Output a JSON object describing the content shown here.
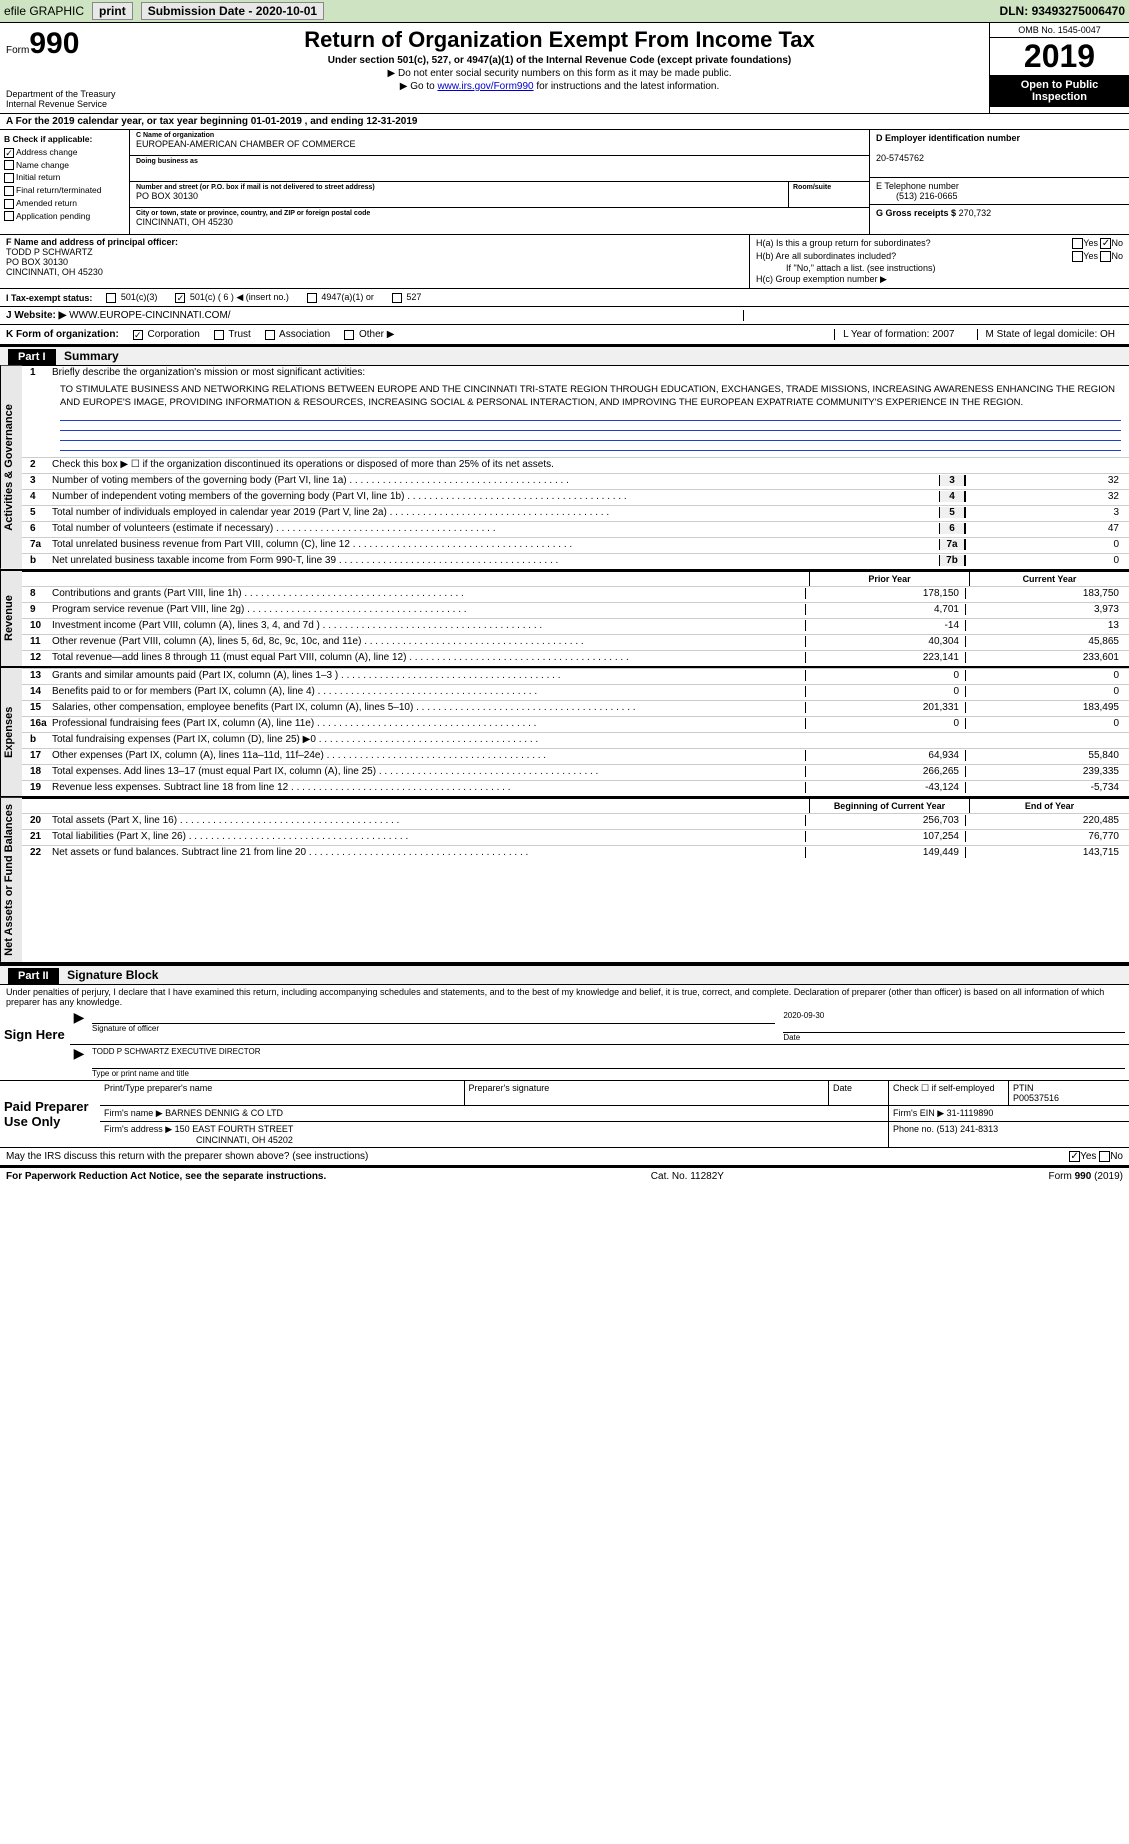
{
  "topbar": {
    "efile": "efile GRAPHIC",
    "print": "print",
    "submission": "Submission Date - 2020-10-01",
    "dln_label": "DLN:",
    "dln": "93493275006470"
  },
  "header": {
    "form_word": "Form",
    "form_num": "990",
    "dept": "Department of the Treasury\nInternal Revenue Service",
    "title": "Return of Organization Exempt From Income Tax",
    "subtitle": "Under section 501(c), 527, or 4947(a)(1) of the Internal Revenue Code (except private foundations)",
    "note1": "▶ Do not enter social security numbers on this form as it may be made public.",
    "note2_pre": "▶ Go to ",
    "note2_link": "www.irs.gov/Form990",
    "note2_post": " for instructions and the latest information.",
    "omb": "OMB No. 1545-0047",
    "year": "2019",
    "open": "Open to Public Inspection"
  },
  "rowA": "A For the 2019 calendar year, or tax year beginning 01-01-2019    , and ending 12-31-2019",
  "B": {
    "label": "B Check if applicable:",
    "items": [
      {
        "txt": "Address change",
        "chk": true
      },
      {
        "txt": "Name change",
        "chk": false
      },
      {
        "txt": "Initial return",
        "chk": false
      },
      {
        "txt": "Final return/terminated",
        "chk": false
      },
      {
        "txt": "Amended return",
        "chk": false
      },
      {
        "txt": "Application pending",
        "chk": false
      }
    ]
  },
  "C": {
    "name_lbl": "C Name of organization",
    "name": "EUROPEAN-AMERICAN CHAMBER OF COMMERCE",
    "dba_lbl": "Doing business as",
    "dba": "",
    "street_lbl": "Number and street (or P.O. box if mail is not delivered to street address)",
    "street": "PO BOX 30130",
    "room_lbl": "Room/suite",
    "city_lbl": "City or town, state or province, country, and ZIP or foreign postal code",
    "city": "CINCINNATI, OH  45230"
  },
  "DE": {
    "d_lbl": "D Employer identification number",
    "d_val": "20-5745762",
    "e_lbl": "E Telephone number",
    "e_val": "(513) 216-0665",
    "g_lbl": "G Gross receipts $",
    "g_val": "270,732"
  },
  "F": {
    "lbl": "F  Name and address of principal officer:",
    "name": "TODD P SCHWARTZ",
    "addr1": "PO BOX 30130",
    "addr2": "CINCINNATI, OH  45230"
  },
  "H": {
    "a": "H(a)  Is this a group return for subordinates?",
    "a_yes": false,
    "a_no": true,
    "b": "H(b)  Are all subordinates included?",
    "b_note": "If \"No,\" attach a list. (see instructions)",
    "c": "H(c)  Group exemption number ▶"
  },
  "I": {
    "lbl": "I   Tax-exempt status:",
    "opts": [
      {
        "txt": "501(c)(3)",
        "chk": false
      },
      {
        "txt": "501(c) ( 6 ) ◀ (insert no.)",
        "chk": true
      },
      {
        "txt": "4947(a)(1) or",
        "chk": false
      },
      {
        "txt": "527",
        "chk": false
      }
    ]
  },
  "J": {
    "lbl": "J   Website: ▶",
    "val": "WWW.EUROPE-CINCINNATI.COM/"
  },
  "K": {
    "lbl": "K Form of organization:",
    "opts": [
      {
        "txt": "Corporation",
        "chk": true
      },
      {
        "txt": "Trust",
        "chk": false
      },
      {
        "txt": "Association",
        "chk": false
      },
      {
        "txt": "Other ▶",
        "chk": false
      }
    ],
    "L": "L Year of formation: 2007",
    "M": "M State of legal domicile: OH"
  },
  "partI": {
    "hdr": "Part I",
    "title": "Summary"
  },
  "summary": {
    "l1": "Briefly describe the organization's mission or most significant activities:",
    "mission": "TO STIMULATE BUSINESS AND NETWORKING RELATIONS BETWEEN EUROPE AND THE CINCINNATI TRI-STATE REGION THROUGH EDUCATION, EXCHANGES, TRADE MISSIONS, INCREASING AWARENESS ENHANCING THE REGION AND EUROPE'S IMAGE, PROVIDING INFORMATION & RESOURCES, INCREASING SOCIAL & PERSONAL INTERACTION, AND IMPROVING THE EUROPEAN EXPATRIATE COMMUNITY'S EXPERIENCE IN THE REGION.",
    "l2": "Check this box ▶ ☐  if the organization discontinued its operations or disposed of more than 25% of its net assets.",
    "lines": [
      {
        "n": "3",
        "t": "Number of voting members of the governing body (Part VI, line 1a)",
        "k": "3",
        "v": "32"
      },
      {
        "n": "4",
        "t": "Number of independent voting members of the governing body (Part VI, line 1b)",
        "k": "4",
        "v": "32"
      },
      {
        "n": "5",
        "t": "Total number of individuals employed in calendar year 2019 (Part V, line 2a)",
        "k": "5",
        "v": "3"
      },
      {
        "n": "6",
        "t": "Total number of volunteers (estimate if necessary)",
        "k": "6",
        "v": "47"
      },
      {
        "n": "7a",
        "t": "Total unrelated business revenue from Part VIII, column (C), line 12",
        "k": "7a",
        "v": "0"
      },
      {
        "n": "b",
        "t": "Net unrelated business taxable income from Form 990-T, line 39",
        "k": "7b",
        "v": "0"
      }
    ]
  },
  "revhdr": {
    "prior": "Prior Year",
    "curr": "Current Year"
  },
  "revenue": [
    {
      "n": "8",
      "t": "Contributions and grants (Part VIII, line 1h)",
      "p": "178,150",
      "c": "183,750"
    },
    {
      "n": "9",
      "t": "Program service revenue (Part VIII, line 2g)",
      "p": "4,701",
      "c": "3,973"
    },
    {
      "n": "10",
      "t": "Investment income (Part VIII, column (A), lines 3, 4, and 7d )",
      "p": "-14",
      "c": "13"
    },
    {
      "n": "11",
      "t": "Other revenue (Part VIII, column (A), lines 5, 6d, 8c, 9c, 10c, and 11e)",
      "p": "40,304",
      "c": "45,865"
    },
    {
      "n": "12",
      "t": "Total revenue—add lines 8 through 11 (must equal Part VIII, column (A), line 12)",
      "p": "223,141",
      "c": "233,601"
    }
  ],
  "expenses": [
    {
      "n": "13",
      "t": "Grants and similar amounts paid (Part IX, column (A), lines 1–3 )",
      "p": "0",
      "c": "0"
    },
    {
      "n": "14",
      "t": "Benefits paid to or for members (Part IX, column (A), line 4)",
      "p": "0",
      "c": "0"
    },
    {
      "n": "15",
      "t": "Salaries, other compensation, employee benefits (Part IX, column (A), lines 5–10)",
      "p": "201,331",
      "c": "183,495"
    },
    {
      "n": "16a",
      "t": "Professional fundraising fees (Part IX, column (A), line 11e)",
      "p": "0",
      "c": "0"
    },
    {
      "n": "b",
      "t": "Total fundraising expenses (Part IX, column (D), line 25) ▶0",
      "p": "",
      "c": "",
      "gray": true
    },
    {
      "n": "17",
      "t": "Other expenses (Part IX, column (A), lines 11a–11d, 11f–24e)",
      "p": "64,934",
      "c": "55,840"
    },
    {
      "n": "18",
      "t": "Total expenses. Add lines 13–17 (must equal Part IX, column (A), line 25)",
      "p": "266,265",
      "c": "239,335"
    },
    {
      "n": "19",
      "t": "Revenue less expenses. Subtract line 18 from line 12",
      "p": "-43,124",
      "c": "-5,734"
    }
  ],
  "nethdr": {
    "prior": "Beginning of Current Year",
    "curr": "End of Year"
  },
  "net": [
    {
      "n": "20",
      "t": "Total assets (Part X, line 16)",
      "p": "256,703",
      "c": "220,485"
    },
    {
      "n": "21",
      "t": "Total liabilities (Part X, line 26)",
      "p": "107,254",
      "c": "76,770"
    },
    {
      "n": "22",
      "t": "Net assets or fund balances. Subtract line 21 from line 20",
      "p": "149,449",
      "c": "143,715"
    }
  ],
  "partII": {
    "hdr": "Part II",
    "title": "Signature Block"
  },
  "penalties": "Under penalties of perjury, I declare that I have examined this return, including accompanying schedules and statements, and to the best of my knowledge and belief, it is true, correct, and complete. Declaration of preparer (other than officer) is based on all information of which preparer has any knowledge.",
  "sign": {
    "here": "Sign Here",
    "sig_lbl": "Signature of officer",
    "date": "2020-09-30",
    "date_lbl": "Date",
    "name": "TODD P SCHWARTZ  EXECUTIVE DIRECTOR",
    "name_lbl": "Type or print name and title"
  },
  "paid": {
    "lbl": "Paid Preparer Use Only",
    "h1": "Print/Type preparer's name",
    "h2": "Preparer's signature",
    "h3": "Date",
    "h4": "Check ☐ if self-employed",
    "h5": "PTIN",
    "ptin": "P00537516",
    "firm_lbl": "Firm's name      ▶",
    "firm": "BARNES DENNIG & CO LTD",
    "ein_lbl": "Firm's EIN ▶",
    "ein": "31-1119890",
    "addr_lbl": "Firm's address ▶",
    "addr1": "150 EAST FOURTH STREET",
    "addr2": "CINCINNATI, OH  45202",
    "phone_lbl": "Phone no.",
    "phone": "(513) 241-8313"
  },
  "discuss": {
    "q": "May the IRS discuss this return with the preparer shown above? (see instructions)",
    "yes": true,
    "no": false
  },
  "footer": {
    "l": "For Paperwork Reduction Act Notice, see the separate instructions.",
    "m": "Cat. No. 11282Y",
    "r": "Form 990 (2019)"
  },
  "sidetabs": {
    "ag": "Activities & Governance",
    "rev": "Revenue",
    "exp": "Expenses",
    "net": "Net Assets or Fund Balances"
  }
}
